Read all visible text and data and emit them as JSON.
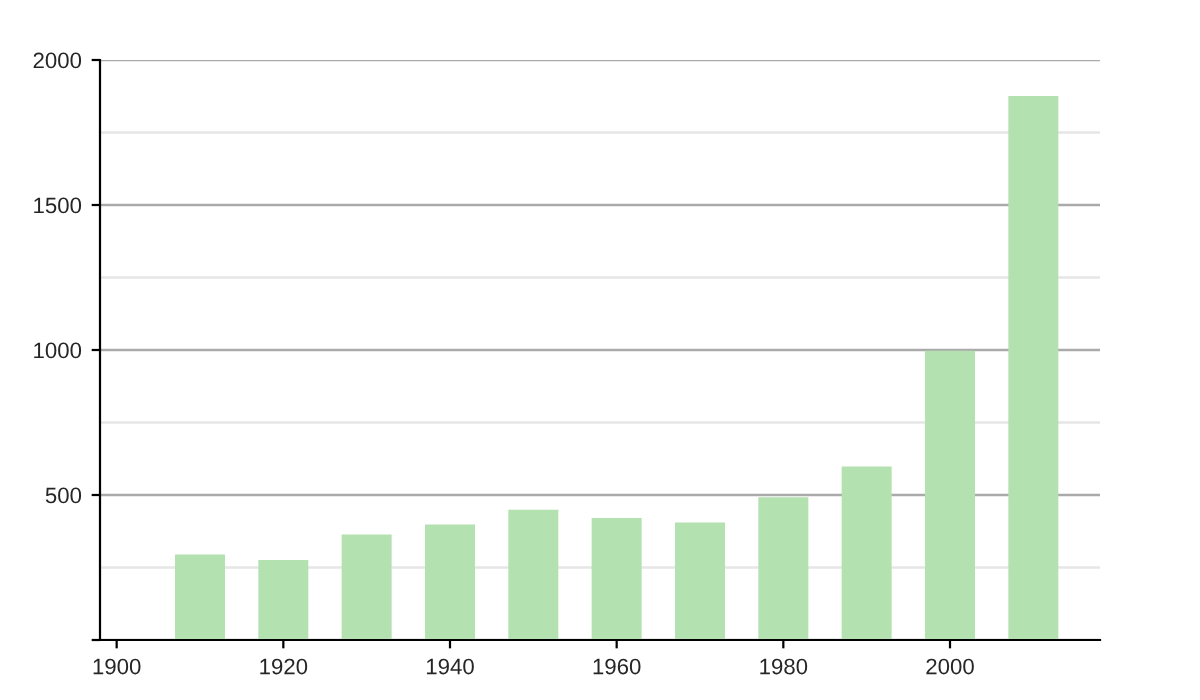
{
  "chart_data": {
    "type": "bar",
    "x": [
      1910,
      1920,
      1930,
      1940,
      1950,
      1960,
      1970,
      1980,
      1990,
      2000,
      2010
    ],
    "values": [
      295,
      276,
      364,
      398,
      449,
      421,
      405,
      492,
      598,
      997,
      1876
    ],
    "color": "#b3e2b0",
    "xlim": [
      1898,
      2018
    ],
    "xticks": [
      1900,
      1920,
      1940,
      1960,
      1980,
      2000
    ],
    "ylim": [
      0,
      2000
    ],
    "yticks": [
      {
        "value": 0,
        "label": null
      },
      500,
      1000,
      1500,
      2000
    ],
    "grid": "y"
  }
}
